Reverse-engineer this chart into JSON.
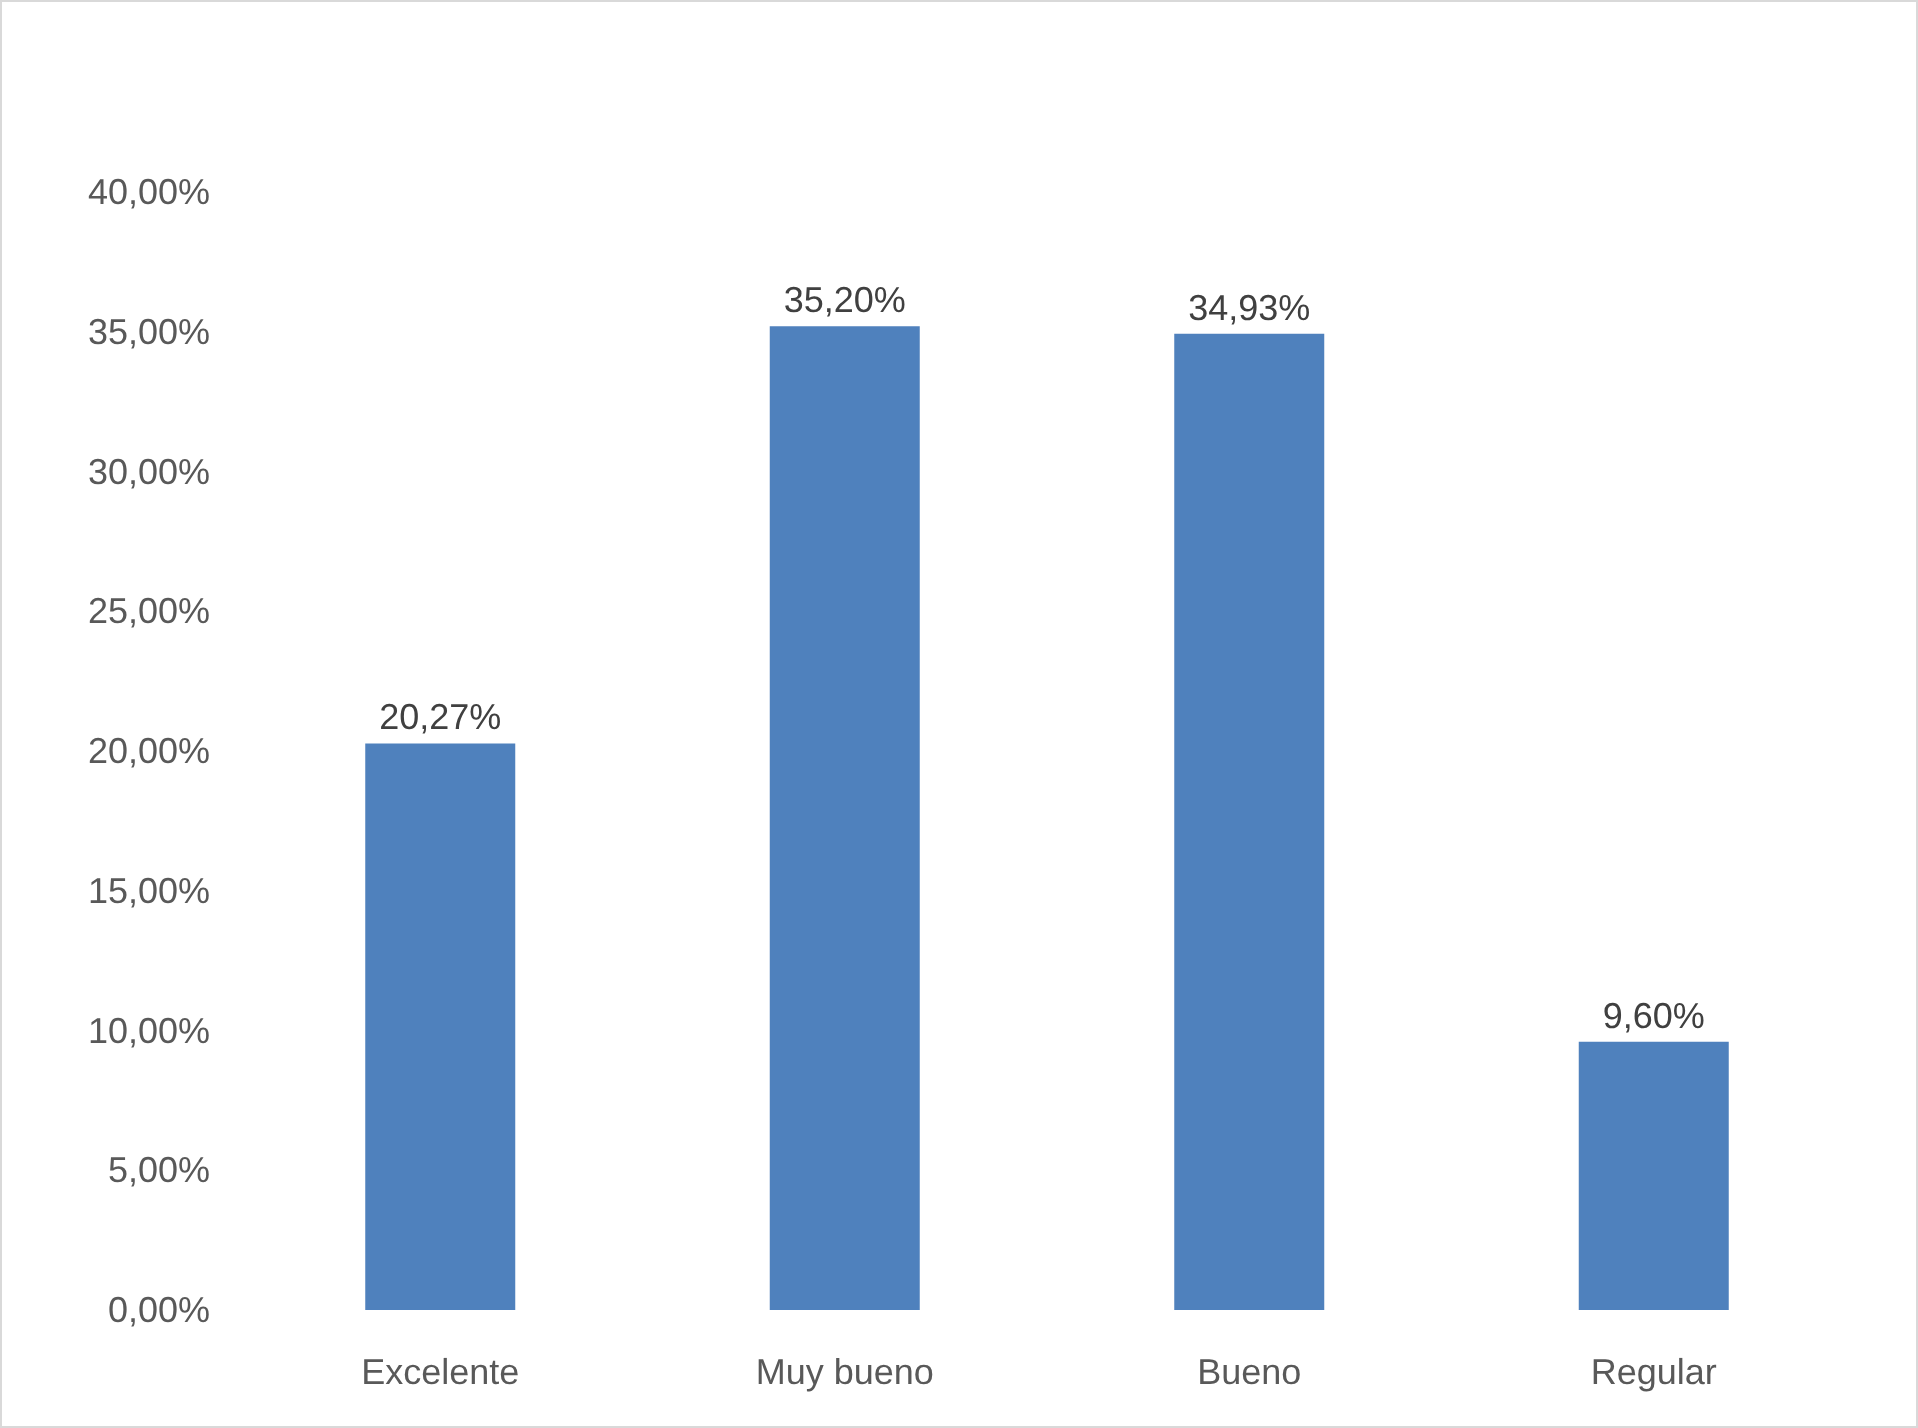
{
  "chart_data": {
    "type": "bar",
    "categories": [
      "Excelente",
      "Muy bueno",
      "Bueno",
      "Regular"
    ],
    "values": [
      20.27,
      35.2,
      34.93,
      9.6
    ],
    "color": "#4f81bd",
    "value_labels": [
      "20,27%",
      "35,20%",
      "34,93%",
      "9,60%"
    ],
    "ylim": [
      0,
      40
    ],
    "yticks": [
      {
        "value": 0,
        "label": "0,00%"
      },
      {
        "value": 5,
        "label": "5,00%"
      },
      {
        "value": 10,
        "label": "10,00%"
      },
      {
        "value": 15,
        "label": "15,00%"
      },
      {
        "value": 20,
        "label": "20,00%"
      },
      {
        "value": 25,
        "label": "25,00%"
      },
      {
        "value": 30,
        "label": "30,00%"
      },
      {
        "value": 35,
        "label": "35,00%"
      },
      {
        "value": 40,
        "label": "40,00%"
      }
    ],
    "grid": false
  }
}
